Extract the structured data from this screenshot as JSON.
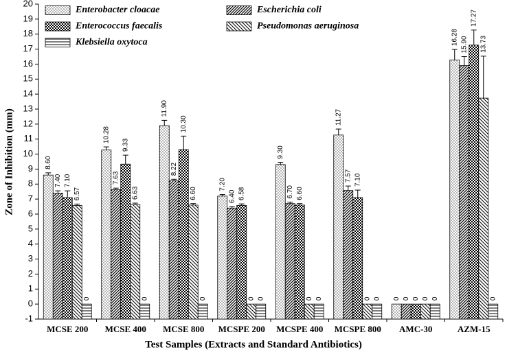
{
  "chart_data": {
    "type": "bar",
    "x_label": "Test Samples (Extracts and Standard Antibiotics)",
    "y_label": "Zone of Inhibition (mm)",
    "categories": [
      "MCSE 200",
      "MCSE 400",
      "MCSE 800",
      "MCSPE 200",
      "MCSPE 400",
      "MCSPE 800",
      "AMC-30",
      "AZM-15"
    ],
    "series": [
      {
        "name": "Enterobacter cloacae",
        "color": "#000000",
        "pattern": "dots",
        "values": [
          8.6,
          10.28,
          11.9,
          7.2,
          9.3,
          11.27,
          0,
          16.28
        ],
        "value_labels": [
          "8.60",
          "10.28",
          "11.90",
          "7.20",
          "9.30",
          "11.27",
          "0",
          "16.28"
        ],
        "errors": [
          0.15,
          0.2,
          0.35,
          0.1,
          0.15,
          0.4,
          0,
          0.7
        ]
      },
      {
        "name": "Escherichia coli",
        "color": "#000000",
        "pattern": "hatch",
        "values": [
          7.4,
          7.63,
          8.22,
          6.4,
          6.7,
          7.57,
          0,
          15.9
        ],
        "value_labels": [
          "7.40",
          "7.63",
          "8.22",
          "6.40",
          "6.70",
          "7.57",
          "0",
          "15.90"
        ],
        "errors": [
          0.15,
          0.1,
          0.1,
          0.1,
          0.1,
          0.3,
          0,
          0.6
        ]
      },
      {
        "name": "Enterococcus faecalis",
        "color": "#000000",
        "pattern": "cross",
        "values": [
          7.1,
          9.33,
          10.3,
          6.58,
          6.6,
          7.1,
          0,
          17.27
        ],
        "value_labels": [
          "7.10",
          "9.33",
          "10.30",
          "6.58",
          "6.60",
          "7.10",
          "0",
          "17.27"
        ],
        "errors": [
          0.45,
          0.6,
          0.9,
          0.1,
          0.1,
          0.5,
          0,
          1.0
        ]
      },
      {
        "name": "Pseudomonas aeruginosa",
        "color": "#000000",
        "pattern": "backhatch",
        "values": [
          6.57,
          6.63,
          6.6,
          0,
          0,
          0,
          0,
          13.73
        ],
        "value_labels": [
          "6.57",
          "6.63",
          "6.60",
          "0",
          "0",
          "0",
          "0",
          "13.73"
        ],
        "errors": [
          0.1,
          0.1,
          0.1,
          0,
          0,
          0,
          0,
          2.8
        ]
      },
      {
        "name": "Klebsiella oxytoca",
        "color": "#000000",
        "pattern": "horizontal",
        "values": [
          0,
          0,
          0,
          0,
          0,
          0,
          0,
          0
        ],
        "value_labels": [
          "0",
          "0",
          "0",
          "0",
          "0",
          "0",
          "0",
          "0"
        ],
        "errors": [
          0,
          0,
          0,
          0,
          0,
          0,
          0,
          0
        ]
      }
    ],
    "ylim": [
      -1,
      20
    ],
    "yticks": [
      -1,
      0,
      1,
      2,
      3,
      4,
      5,
      6,
      7,
      8,
      9,
      10,
      11,
      12,
      13,
      14,
      15,
      16,
      17,
      18,
      19,
      20
    ]
  }
}
